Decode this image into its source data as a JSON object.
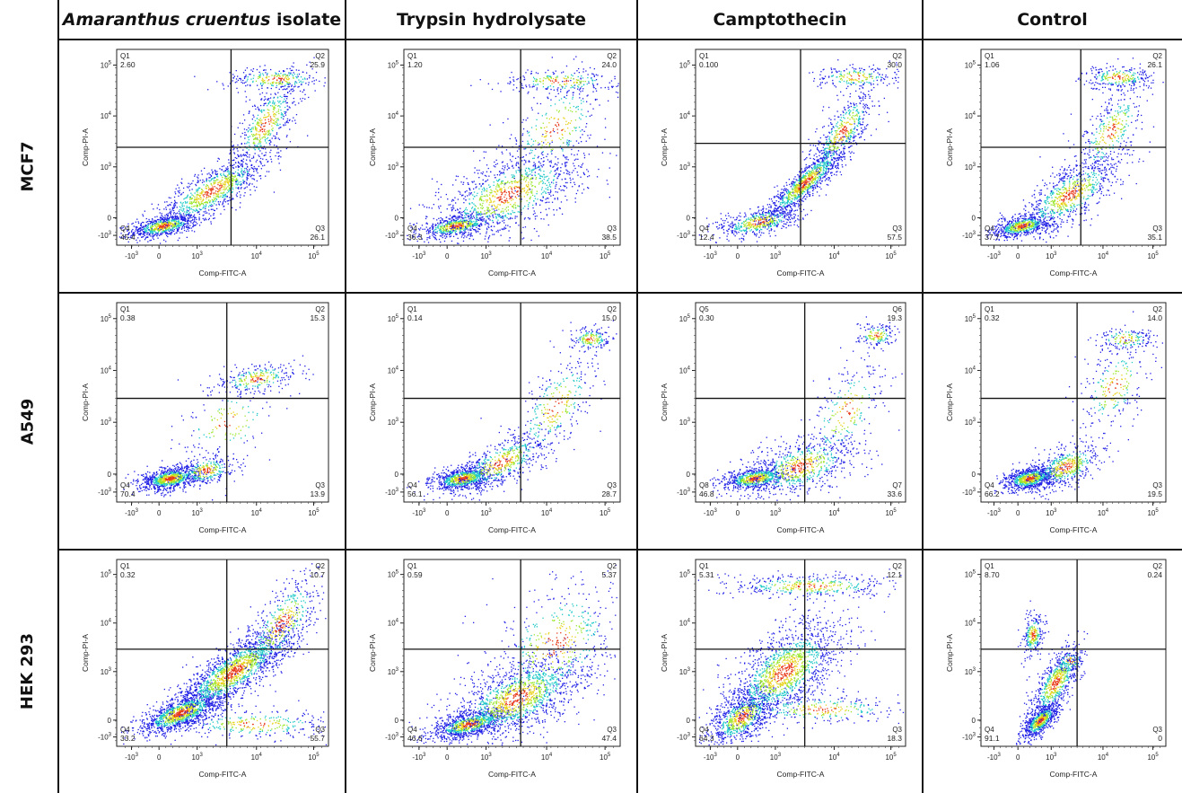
{
  "columns": [
    {
      "italic": "Amaranthus cruentus",
      "rest": " isolate"
    },
    {
      "italic": "",
      "rest": "Trypsin hydrolysate"
    },
    {
      "italic": "",
      "rest": "Camptothecin"
    },
    {
      "italic": "",
      "rest": "Control"
    }
  ],
  "rows": [
    "MCF7",
    "A549",
    "HEK 293"
  ],
  "colors": {
    "low": "#1e1ee6",
    "mid": "#1fc8c8",
    "high_mid": "#9ae62a",
    "high": "#e8d21a",
    "peak": "#e83a1a",
    "gate_line": "#111111"
  },
  "chart_data": [
    {
      "type": "scatter",
      "row": "MCF7",
      "column": "Amaranthus cruentus isolate",
      "xlabel": "Comp-FITC-A",
      "ylabel": "Comp-PI-A",
      "x_scale": "biexponential",
      "y_scale": "biexponential",
      "x_ticks": [
        "-10^3",
        "0",
        "10^3",
        "10^4",
        "10^5"
      ],
      "y_ticks": [
        "-10^3",
        "0",
        "10^3",
        "10^4",
        "10^5"
      ],
      "quadrants": [
        {
          "name": "Q1",
          "percent": "2.60"
        },
        {
          "name": "Q2",
          "percent": "25.9"
        },
        {
          "name": "Q3",
          "percent": "26.1"
        },
        {
          "name": "Q4",
          "percent": "45.4"
        }
      ]
    },
    {
      "type": "scatter",
      "row": "MCF7",
      "column": "Trypsin hydrolysate",
      "xlabel": "Comp-FITC-A",
      "ylabel": "Comp-PI-A",
      "x_scale": "biexponential",
      "y_scale": "biexponential",
      "x_ticks": [
        "-10^3",
        "0",
        "10^3",
        "10^4",
        "10^5"
      ],
      "y_ticks": [
        "-10^3",
        "0",
        "10^3",
        "10^4",
        "10^5"
      ],
      "quadrants": [
        {
          "name": "Q1",
          "percent": "1.20"
        },
        {
          "name": "Q2",
          "percent": "24.0"
        },
        {
          "name": "Q3",
          "percent": "38.5"
        },
        {
          "name": "Q4",
          "percent": "36.3"
        }
      ]
    },
    {
      "type": "scatter",
      "row": "MCF7",
      "column": "Camptothecin",
      "xlabel": "Comp-FITC-A",
      "ylabel": "Comp-PI-A",
      "x_scale": "biexponential",
      "y_scale": "biexponential",
      "x_ticks": [
        "-10^3",
        "0",
        "10^3",
        "10^4",
        "10^5"
      ],
      "y_ticks": [
        "-10^3",
        "0",
        "10^3",
        "10^4",
        "10^5"
      ],
      "quadrants": [
        {
          "name": "Q1",
          "percent": "0.100"
        },
        {
          "name": "Q2",
          "percent": "30.0"
        },
        {
          "name": "Q3",
          "percent": "57.5"
        },
        {
          "name": "Q4",
          "percent": "12.4"
        }
      ]
    },
    {
      "type": "scatter",
      "row": "MCF7",
      "column": "Control",
      "xlabel": "Comp-FITC-A",
      "ylabel": "Comp-PI-A",
      "x_scale": "biexponential",
      "y_scale": "biexponential",
      "x_ticks": [
        "-10^3",
        "0",
        "10^3",
        "10^4",
        "10^5"
      ],
      "y_ticks": [
        "-10^3",
        "0",
        "10^3",
        "10^4",
        "10^5"
      ],
      "quadrants": [
        {
          "name": "Q1",
          "percent": "1.06"
        },
        {
          "name": "Q2",
          "percent": "26.1"
        },
        {
          "name": "Q3",
          "percent": "35.1"
        },
        {
          "name": "Q4",
          "percent": "37.7"
        }
      ]
    },
    {
      "type": "scatter",
      "row": "A549",
      "column": "Amaranthus cruentus isolate",
      "xlabel": "Comp-FITC-A",
      "ylabel": "Comp-PI-A",
      "x_scale": "biexponential",
      "y_scale": "biexponential",
      "x_ticks": [
        "-10^3",
        "0",
        "10^3",
        "10^4",
        "10^5"
      ],
      "y_ticks": [
        "-10^3",
        "0",
        "10^3",
        "10^4",
        "10^5"
      ],
      "quadrants": [
        {
          "name": "Q1",
          "percent": "0.38"
        },
        {
          "name": "Q2",
          "percent": "15.3"
        },
        {
          "name": "Q3",
          "percent": "13.9"
        },
        {
          "name": "Q4",
          "percent": "70.4"
        }
      ]
    },
    {
      "type": "scatter",
      "row": "A549",
      "column": "Trypsin hydrolysate",
      "xlabel": "Comp-FITC-A",
      "ylabel": "Comp-PI-A",
      "x_scale": "biexponential",
      "y_scale": "biexponential",
      "x_ticks": [
        "-10^3",
        "0",
        "10^3",
        "10^4",
        "10^5"
      ],
      "y_ticks": [
        "-10^3",
        "0",
        "10^3",
        "10^4",
        "10^5"
      ],
      "quadrants": [
        {
          "name": "Q1",
          "percent": "0.14"
        },
        {
          "name": "Q2",
          "percent": "15.0"
        },
        {
          "name": "Q3",
          "percent": "28.7"
        },
        {
          "name": "Q4",
          "percent": "56.1"
        }
      ]
    },
    {
      "type": "scatter",
      "row": "A549",
      "column": "Camptothecin",
      "xlabel": "Comp-FITC-A",
      "ylabel": "Comp-PI-A",
      "x_scale": "biexponential",
      "y_scale": "biexponential",
      "x_ticks": [
        "-10^3",
        "0",
        "10^3",
        "10^4",
        "10^5"
      ],
      "y_ticks": [
        "-10^3",
        "0",
        "10^3",
        "10^4",
        "10^5"
      ],
      "quadrants": [
        {
          "name": "Q5",
          "percent": "0.30"
        },
        {
          "name": "Q6",
          "percent": "19.3"
        },
        {
          "name": "Q7",
          "percent": "33.6"
        },
        {
          "name": "Q8",
          "percent": "46.8"
        }
      ]
    },
    {
      "type": "scatter",
      "row": "A549",
      "column": "Control",
      "xlabel": "Comp-FITC-A",
      "ylabel": "Comp-PI-A",
      "x_scale": "biexponential",
      "y_scale": "biexponential",
      "x_ticks": [
        "-10^3",
        "0",
        "10^3",
        "10^4",
        "10^5"
      ],
      "y_ticks": [
        "-10^3",
        "0",
        "10^3",
        "10^4",
        "10^5"
      ],
      "quadrants": [
        {
          "name": "Q1",
          "percent": "0.32"
        },
        {
          "name": "Q2",
          "percent": "14.0"
        },
        {
          "name": "Q3",
          "percent": "19.5"
        },
        {
          "name": "Q4",
          "percent": "66.2"
        }
      ]
    },
    {
      "type": "scatter",
      "row": "HEK 293",
      "column": "Amaranthus cruentus isolate",
      "xlabel": "Comp-FITC-A",
      "ylabel": "Comp-PI-A",
      "x_scale": "biexponential",
      "y_scale": "biexponential",
      "x_ticks": [
        "-10^3",
        "0",
        "10^3",
        "10^4",
        "10^5"
      ],
      "y_ticks": [
        "-10^3",
        "0",
        "10^3",
        "10^4",
        "10^5"
      ],
      "quadrants": [
        {
          "name": "Q1",
          "percent": "0.32"
        },
        {
          "name": "Q2",
          "percent": "10.7"
        },
        {
          "name": "Q3",
          "percent": "55.7"
        },
        {
          "name": "Q4",
          "percent": "33.2"
        }
      ]
    },
    {
      "type": "scatter",
      "row": "HEK 293",
      "column": "Trypsin hydrolysate",
      "xlabel": "Comp-FITC-A",
      "ylabel": "Comp-PI-A",
      "x_scale": "biexponential",
      "y_scale": "biexponential",
      "x_ticks": [
        "-10^3",
        "0",
        "10^3",
        "10^4",
        "10^5"
      ],
      "y_ticks": [
        "-10^3",
        "0",
        "10^3",
        "10^4",
        "10^5"
      ],
      "quadrants": [
        {
          "name": "Q1",
          "percent": "0.59"
        },
        {
          "name": "Q2",
          "percent": "5.37"
        },
        {
          "name": "Q3",
          "percent": "47.4"
        },
        {
          "name": "Q4",
          "percent": "46.6"
        }
      ]
    },
    {
      "type": "scatter",
      "row": "HEK 293",
      "column": "Camptothecin",
      "xlabel": "Comp-FITC-A",
      "ylabel": "Comp-PI-A",
      "x_scale": "biexponential",
      "y_scale": "biexponential",
      "x_ticks": [
        "-10^3",
        "0",
        "10^3",
        "10^4",
        "10^5"
      ],
      "y_ticks": [
        "-10^3",
        "0",
        "10^3",
        "10^4",
        "10^5"
      ],
      "quadrants": [
        {
          "name": "Q1",
          "percent": "5.31"
        },
        {
          "name": "Q2",
          "percent": "12.1"
        },
        {
          "name": "Q3",
          "percent": "18.3"
        },
        {
          "name": "Q4",
          "percent": "64.3"
        }
      ]
    },
    {
      "type": "scatter",
      "row": "HEK 293",
      "column": "Control",
      "xlabel": "Comp-FITC-A",
      "ylabel": "Comp-PI-A",
      "x_scale": "biexponential",
      "y_scale": "biexponential",
      "x_ticks": [
        "-10^3",
        "0",
        "10^3",
        "10^4",
        "10^5"
      ],
      "y_ticks": [
        "-10^3",
        "0",
        "10^3",
        "10^4",
        "10^5"
      ],
      "quadrants": [
        {
          "name": "Q1",
          "percent": "8.70"
        },
        {
          "name": "Q2",
          "percent": "0.24"
        },
        {
          "name": "Q3",
          "percent": "0"
        },
        {
          "name": "Q4",
          "percent": "91.1"
        }
      ]
    }
  ]
}
